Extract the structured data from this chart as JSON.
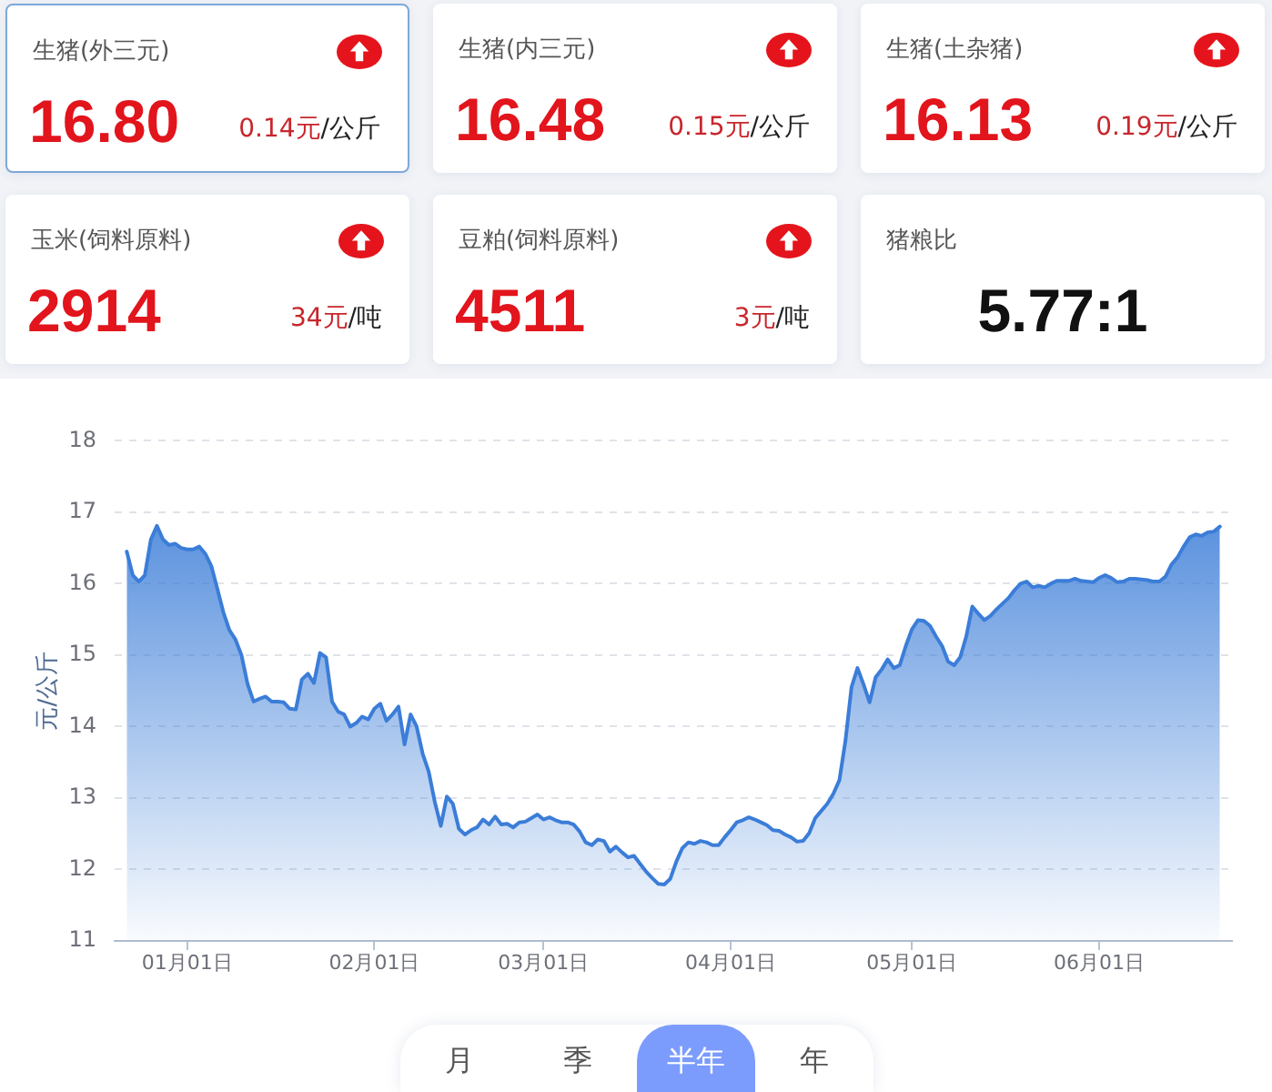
{
  "chart_data": [
    {
      "type": "other",
      "title": "生猪(外三元)",
      "annotations": [
        "16.80",
        "0.14元",
        "/公斤"
      ]
    },
    {
      "type": "other",
      "title": "生猪(内三元)",
      "annotations": [
        "16.48",
        "0.15元",
        "/公斤"
      ]
    },
    {
      "type": "other",
      "title": "生猪(土杂猪)",
      "annotations": [
        "16.13",
        "0.19元",
        "/公斤"
      ]
    },
    {
      "type": "other",
      "title": "玉米(饲料原料)",
      "annotations": [
        "2914",
        "34元",
        "/吨"
      ]
    },
    {
      "type": "other",
      "title": "豆粕(饲料原料)",
      "annotations": [
        "4511",
        "3元",
        "/吨"
      ]
    },
    {
      "type": "other",
      "title": "猪粮比",
      "annotations": [
        "5.77:1"
      ]
    },
    {
      "type": "area",
      "ylabel": "元/公斤",
      "color": "#3b7dd8",
      "grid": "y",
      "ylim": [
        11,
        18
      ],
      "yticks": [
        11,
        12,
        13,
        14,
        15,
        16,
        17,
        18
      ],
      "categories": [
        null,
        null,
        null,
        null,
        null,
        null,
        null,
        null,
        null,
        null,
        "01月01日",
        null,
        null,
        null,
        null,
        null,
        null,
        null,
        null,
        null,
        null,
        null,
        null,
        null,
        null,
        null,
        null,
        null,
        null,
        null,
        null,
        null,
        null,
        null,
        null,
        null,
        null,
        null,
        null,
        null,
        null,
        "02月01日",
        null,
        null,
        null,
        null,
        null,
        null,
        null,
        null,
        null,
        null,
        null,
        null,
        null,
        null,
        null,
        null,
        null,
        null,
        null,
        null,
        null,
        null,
        null,
        null,
        null,
        null,
        null,
        "03月01日",
        null,
        null,
        null,
        null,
        null,
        null,
        null,
        null,
        null,
        null,
        null,
        null,
        null,
        null,
        null,
        null,
        null,
        null,
        null,
        null,
        null,
        null,
        null,
        null,
        null,
        null,
        null,
        null,
        null,
        null,
        "04月01日",
        null,
        null,
        null,
        null,
        null,
        null,
        null,
        null,
        null,
        null,
        null,
        null,
        null,
        null,
        null,
        null,
        null,
        null,
        null,
        null,
        null,
        null,
        null,
        null,
        null,
        null,
        null,
        null,
        null,
        "05月01日",
        null,
        null,
        null,
        null,
        null,
        null,
        null,
        null,
        null,
        null,
        null,
        null,
        null,
        null,
        null,
        null,
        null,
        null,
        null,
        null,
        null,
        null,
        null,
        null,
        null,
        null,
        null,
        null,
        null,
        null,
        "06月01日",
        null,
        null,
        null,
        null,
        null,
        null,
        null,
        null,
        null,
        null,
        null,
        null,
        null,
        null,
        null,
        null,
        null,
        null,
        null,
        null
      ],
      "values": [
        16.45,
        16.12,
        16.03,
        16.12,
        16.62,
        16.81,
        16.62,
        16.54,
        16.56,
        16.5,
        16.48,
        16.48,
        16.52,
        16.42,
        16.25,
        15.93,
        15.6,
        15.35,
        15.22,
        15.0,
        14.6,
        14.35,
        14.39,
        14.42,
        14.35,
        14.35,
        14.34,
        14.25,
        14.24,
        14.66,
        14.74,
        14.61,
        15.03,
        14.97,
        14.35,
        14.21,
        14.17,
        14.0,
        14.05,
        14.14,
        14.1,
        14.25,
        14.32,
        14.08,
        14.17,
        14.28,
        13.75,
        14.17,
        14.0,
        13.62,
        13.37,
        12.95,
        12.61,
        13.02,
        12.92,
        12.57,
        12.49,
        12.55,
        12.59,
        12.7,
        12.63,
        12.74,
        12.63,
        12.64,
        12.59,
        12.66,
        12.67,
        12.72,
        12.77,
        12.7,
        12.73,
        12.69,
        12.66,
        12.66,
        12.63,
        12.53,
        12.38,
        12.34,
        12.42,
        12.4,
        12.25,
        12.32,
        12.24,
        12.17,
        12.19,
        12.08,
        11.97,
        11.88,
        11.8,
        11.79,
        11.87,
        12.11,
        12.3,
        12.38,
        12.36,
        12.4,
        12.38,
        12.34,
        12.34,
        12.45,
        12.55,
        12.66,
        12.69,
        12.73,
        12.7,
        12.66,
        12.62,
        12.55,
        12.54,
        12.49,
        12.45,
        12.39,
        12.4,
        12.51,
        12.72,
        12.82,
        12.92,
        13.06,
        13.25,
        13.8,
        14.55,
        14.82,
        14.59,
        14.34,
        14.69,
        14.8,
        14.94,
        14.82,
        14.86,
        15.13,
        15.36,
        15.49,
        15.48,
        15.41,
        15.26,
        15.13,
        14.91,
        14.86,
        14.97,
        15.26,
        15.68,
        15.58,
        15.49,
        15.55,
        15.64,
        15.72,
        15.8,
        15.91,
        16.0,
        16.03,
        15.95,
        15.97,
        15.95,
        16.0,
        16.04,
        16.04,
        16.04,
        16.07,
        16.04,
        16.03,
        16.02,
        16.08,
        16.12,
        16.08,
        16.02,
        16.03,
        16.07,
        16.07,
        16.06,
        16.05,
        16.03,
        16.03,
        16.1,
        16.27,
        16.37,
        16.52,
        16.65,
        16.69,
        16.67,
        16.72,
        16.73,
        16.8
      ]
    },
    {
      "type": "other",
      "annotations": [
        "月",
        "季",
        "半年",
        "年"
      ]
    }
  ]
}
